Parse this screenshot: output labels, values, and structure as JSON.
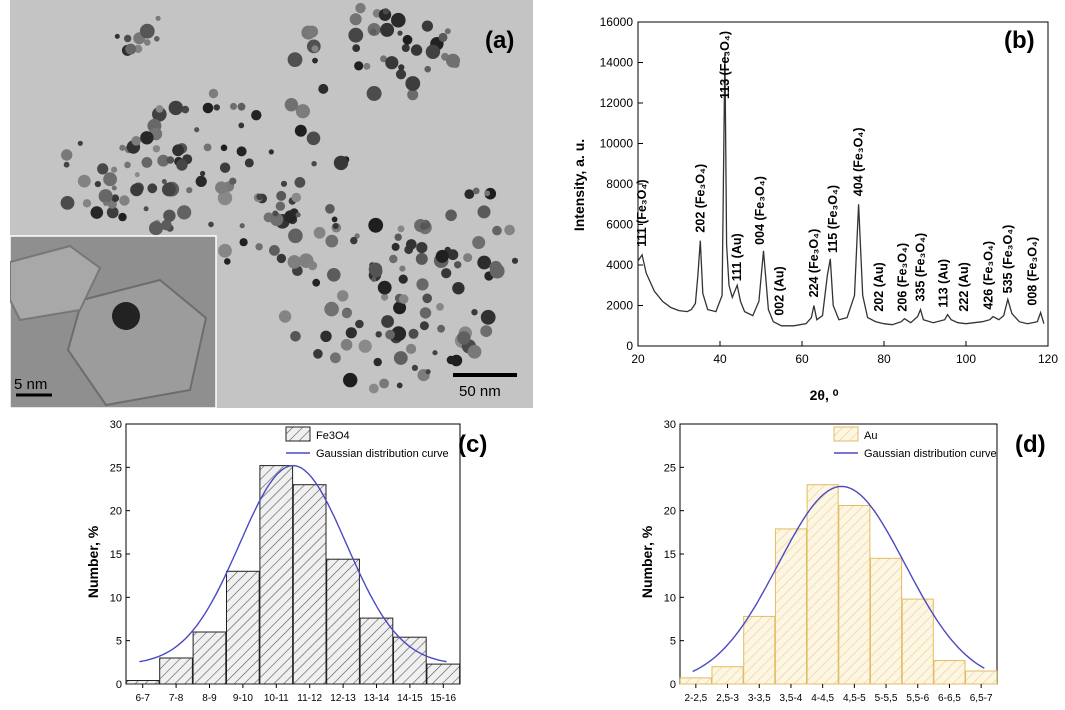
{
  "panel_a": {
    "label": "(a)",
    "scale_bar_main": "50 nm",
    "scale_bar_inset": "5 nm",
    "colors": {
      "background": "#c4c4c4",
      "particle": "#1e1e1e"
    }
  },
  "chart_data": [
    {
      "panel": "(b)",
      "type": "line",
      "xlabel": "2θ, ⁰",
      "ylabel": "Intensity, a. u.",
      "xlim": [
        20,
        120
      ],
      "ylim": [
        0,
        16000
      ],
      "xticks": [
        20,
        40,
        60,
        80,
        100,
        120
      ],
      "yticks": [
        0,
        2000,
        4000,
        6000,
        8000,
        10000,
        12000,
        14000,
        16000
      ],
      "x": [
        20,
        21,
        22,
        24,
        26,
        28,
        30,
        32,
        33,
        34,
        34.6,
        35.2,
        35.8,
        37,
        39,
        40.5,
        41.2,
        41.6,
        42.2,
        43,
        44.2,
        45,
        46,
        48,
        49.5,
        50.6,
        51.8,
        53,
        55,
        58,
        61,
        62.3,
        62.9,
        63.6,
        65,
        66.2,
        66.9,
        67.6,
        69,
        71,
        72.8,
        73.8,
        74.8,
        76,
        78,
        80,
        82,
        84.2,
        85,
        86.5,
        88.2,
        88.9,
        89.6,
        92,
        94.8,
        95.5,
        96.4,
        98,
        100,
        102,
        104,
        105.8,
        106.6,
        108,
        109.2,
        110.2,
        111.2,
        113,
        115,
        117.4,
        118.2,
        119
      ],
      "y": [
        4200,
        4500,
        3600,
        2700,
        2200,
        1900,
        1750,
        1700,
        1800,
        2100,
        3500,
        5200,
        2600,
        1800,
        1700,
        2500,
        14500,
        5000,
        3000,
        2400,
        3000,
        2200,
        1700,
        1500,
        2200,
        4700,
        1800,
        1200,
        1000,
        1000,
        1100,
        1400,
        2000,
        1300,
        1500,
        3500,
        4300,
        2000,
        1300,
        1400,
        2500,
        7000,
        2500,
        1400,
        1200,
        1100,
        1050,
        1200,
        1350,
        1150,
        1450,
        1800,
        1300,
        1150,
        1300,
        1550,
        1300,
        1150,
        1100,
        1150,
        1200,
        1300,
        1450,
        1300,
        1500,
        2300,
        1600,
        1200,
        1100,
        1200,
        1650,
        1100
      ],
      "annotations": [
        {
          "x": 21,
          "y": 4700,
          "text": "111 (Fe₃O₄)"
        },
        {
          "x": 35.2,
          "y": 5400,
          "text": "202 (Fe₃O₄)"
        },
        {
          "x": 41.2,
          "y": 12000,
          "text": "113 (Fe₃O₄)"
        },
        {
          "x": 44.2,
          "y": 3000,
          "text": "111 (Au)"
        },
        {
          "x": 49.8,
          "y": 4800,
          "text": "004 (Fe₃O₄)"
        },
        {
          "x": 54.5,
          "y": 1300,
          "text": "002 (Au)"
        },
        {
          "x": 62.9,
          "y": 2200,
          "text": "224 (Fe₃O₄)"
        },
        {
          "x": 67.6,
          "y": 4400,
          "text": "115 (Fe₃O₄)"
        },
        {
          "x": 73.8,
          "y": 7200,
          "text": "404 (Fe₃O₄)"
        },
        {
          "x": 78.8,
          "y": 1500,
          "text": "202 (Au)"
        },
        {
          "x": 84.5,
          "y": 1500,
          "text": "206 (Fe₃O₄)"
        },
        {
          "x": 88.9,
          "y": 2000,
          "text": "335 (Fe₃O₄)"
        },
        {
          "x": 94.5,
          "y": 1700,
          "text": "113 (Au)"
        },
        {
          "x": 99.5,
          "y": 1500,
          "text": "222 (Au)"
        },
        {
          "x": 105.5,
          "y": 1600,
          "text": "426 (Fe₃O₄)"
        },
        {
          "x": 110.2,
          "y": 2400,
          "text": "535 (Fe₃O₄)"
        },
        {
          "x": 116.2,
          "y": 1800,
          "text": "008 (Fe₃O₄)"
        }
      ],
      "colors": {
        "line": "#333333"
      }
    },
    {
      "panel": "(c)",
      "type": "bar",
      "categories": [
        "6-7",
        "7-8",
        "8-9",
        "9-10",
        "10-11",
        "11-12",
        "12-13",
        "13-14",
        "14-15",
        "15-16"
      ],
      "values": [
        0.4,
        3,
        6,
        13,
        25.2,
        23,
        14.4,
        7.6,
        5.4,
        2.3
      ],
      "ylabel": "Number, %",
      "ylim": [
        0,
        30
      ],
      "yticks": [
        0,
        5,
        10,
        15,
        20,
        25,
        30
      ],
      "legend": [
        "Fe3O4",
        "Gaussian distribution curve"
      ],
      "legend_position": "top-right",
      "gaussian": {
        "mean_index": 4.5,
        "sigma": 1.6,
        "peak": 25.2,
        "offset": 2.2
      },
      "colors": {
        "bar_fill": "#f0f0f0",
        "bar_stroke": "#222222",
        "hatch": "#555555",
        "curve": "#4a4ac2"
      }
    },
    {
      "panel": "(d)",
      "type": "bar",
      "categories": [
        "2-2,5",
        "2,5-3",
        "3-3,5",
        "3,5-4",
        "4-4,5",
        "4,5-5",
        "5-5,5",
        "5,5-6",
        "6-6,5",
        "6,5-7"
      ],
      "values": [
        0.7,
        2,
        7.8,
        17.9,
        23,
        20.6,
        14.5,
        9.8,
        2.7,
        1.5
      ],
      "ylabel": "Number, %",
      "ylim": [
        0,
        30
      ],
      "yticks": [
        0,
        5,
        10,
        15,
        20,
        25,
        30
      ],
      "legend": [
        "Au",
        "Gaussian distribution curve"
      ],
      "legend_position": "top-right",
      "gaussian": {
        "mean_index": 4.6,
        "sigma": 2.0,
        "peak": 22.8,
        "offset": 0
      },
      "colors": {
        "bar_fill": "#fdf6e3",
        "bar_stroke": "#e2bc62",
        "hatch": "#e9cf93",
        "curve": "#4a4ac2"
      }
    }
  ]
}
